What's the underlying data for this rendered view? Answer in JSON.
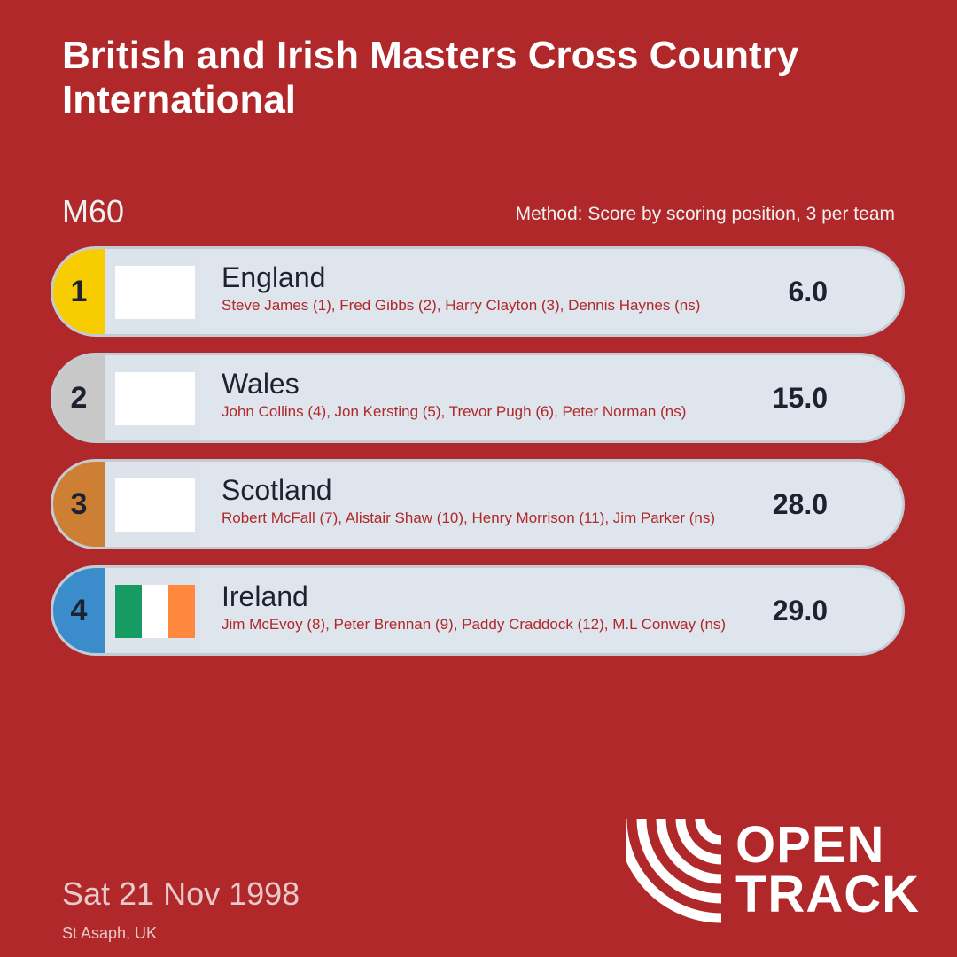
{
  "header": {
    "title": "British and Irish Masters Cross Country International",
    "category": "M60",
    "method": "Method: Score by scoring position, 3 per team"
  },
  "results": [
    {
      "rank": "1",
      "team": "England",
      "members": "Steve James (1), Fred Gibbs (2), Harry Clayton (3), Dennis Haynes (ns)",
      "score": "6.0",
      "rank_color": "#f7cc00",
      "flag": []
    },
    {
      "rank": "2",
      "team": "Wales",
      "members": "John Collins (4), Jon Kersting (5), Trevor Pugh (6), Peter Norman (ns)",
      "score": "15.0",
      "rank_color": "#c8c8c8",
      "flag": []
    },
    {
      "rank": "3",
      "team": "Scotland",
      "members": "Robert McFall (7), Alistair Shaw (10), Henry Morrison (11), Jim Parker (ns)",
      "score": "28.0",
      "rank_color": "#cd8034",
      "flag": []
    },
    {
      "rank": "4",
      "team": "Ireland",
      "members": "Jim McEvoy (8), Peter Brennan (9), Paddy Craddock (12), M.L Conway (ns)",
      "score": "29.0",
      "rank_color": "#3a8ccb",
      "flag": [
        "#169b62",
        "#ffffff",
        "#ff883e"
      ]
    }
  ],
  "footer": {
    "date": "Sat 21 Nov 1998",
    "venue": "St Asaph, UK",
    "logo_line1": "OPEN",
    "logo_line2": "TRACK"
  }
}
